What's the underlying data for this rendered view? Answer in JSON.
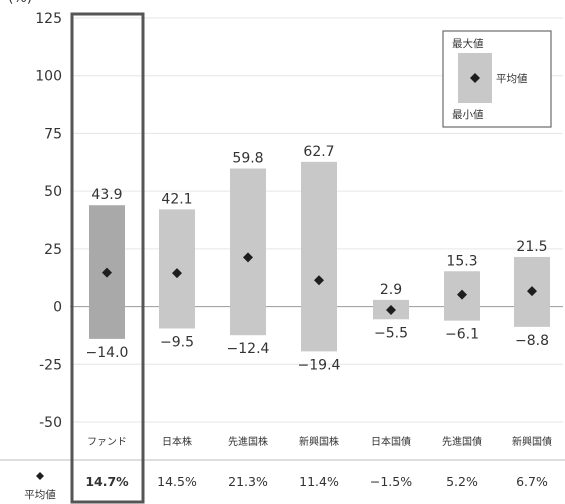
{
  "chart_data": {
    "type": "range",
    "y_unit": "(%)",
    "ylim": [
      -50,
      125
    ],
    "yticks": [
      125,
      100,
      75,
      50,
      25,
      0,
      -25,
      -50
    ],
    "categories": [
      "ファンド",
      "日本株",
      "先進国株",
      "新興国株",
      "日本国債",
      "先進国債",
      "新興国債"
    ],
    "max_values": [
      43.9,
      42.1,
      59.8,
      62.7,
      2.9,
      15.3,
      21.5
    ],
    "min_values": [
      -14.0,
      -9.5,
      -12.4,
      -19.4,
      -5.5,
      -6.1,
      -8.8
    ],
    "avg_values": [
      14.7,
      14.5,
      21.3,
      11.4,
      -1.5,
      5.2,
      6.7
    ],
    "max_labels": [
      "43.9",
      "42.1",
      "59.8",
      "62.7",
      "2.9",
      "15.3",
      "21.5"
    ],
    "min_labels": [
      "−14.0",
      "−9.5",
      "−12.4",
      "−19.4",
      "−5.5",
      "−6.1",
      "−8.8"
    ],
    "avg_labels": [
      "14.7%",
      "14.5%",
      "21.3%",
      "11.4%",
      "−1.5%",
      "5.2%",
      "6.7%"
    ],
    "avg_row_label": "平均値",
    "legend": {
      "max": "最大値",
      "avg": "平均値",
      "min": "最小値"
    },
    "highlight_category": "ファンド",
    "colors": {
      "fund_bar": "#a9a9a9",
      "other_bar": "#c8c8c8",
      "marker": "#1e1e1e",
      "frame": "#555555"
    }
  }
}
